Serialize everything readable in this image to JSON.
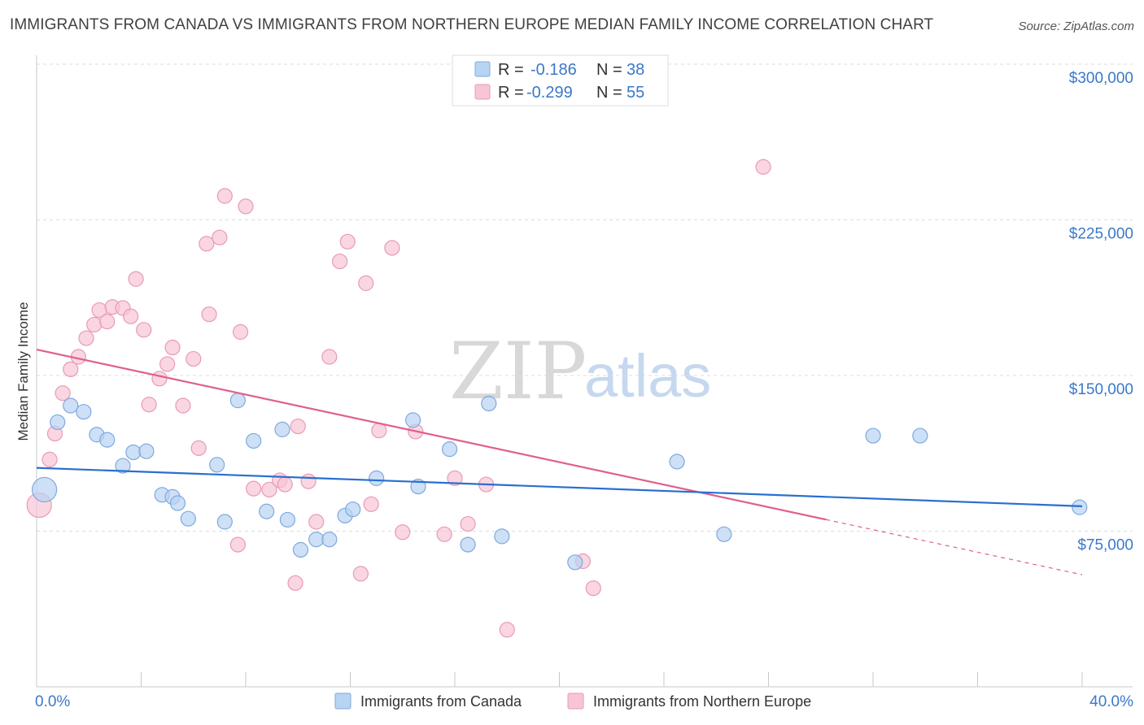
{
  "title": "IMMIGRANTS FROM CANADA VS IMMIGRANTS FROM NORTHERN EUROPE MEDIAN FAMILY INCOME CORRELATION CHART",
  "source": "Source: ZipAtlas.com",
  "watermark": {
    "zip": "ZIP",
    "atlas": "atlas"
  },
  "colors": {
    "blue_fill": "#b9d3f2",
    "blue_stroke": "#7ea9de",
    "blue_line": "#2a6fcf",
    "pink_fill": "#f7c5d5",
    "pink_stroke": "#e99ab5",
    "pink_line": "#e05f8e",
    "grid": "#dddddd",
    "tick_text": "#3b78c9"
  },
  "stats": [
    {
      "swatch": "blue",
      "r_label": "R =",
      "r_value": "-0.186",
      "n_label": "N =",
      "n_value": "38"
    },
    {
      "swatch": "pink",
      "r_label": "R =",
      "r_value": "-0.299",
      "n_label": "N =",
      "n_value": "55"
    }
  ],
  "legend": [
    {
      "swatch": "blue",
      "label": "Immigrants from Canada"
    },
    {
      "swatch": "pink",
      "label": "Immigrants from Northern Europe"
    }
  ],
  "chart_data": {
    "type": "scatter",
    "xlabel": "",
    "ylabel": "Median Family Income",
    "xlim": [
      0,
      40
    ],
    "ylim": [
      0,
      310000
    ],
    "x_tick_labels": {
      "min": "0.0%",
      "max": "40.0%"
    },
    "y_ticks": [
      {
        "value": 75000,
        "label": "$75,000"
      },
      {
        "value": 150000,
        "label": "$150,000"
      },
      {
        "value": 225000,
        "label": "$225,000"
      },
      {
        "value": 300000,
        "label": "$300,000"
      }
    ],
    "grid": true,
    "legend_position": "bottom-center",
    "series": [
      {
        "name": "Immigrants from Canada",
        "color": "blue",
        "trend": {
          "x0": 0,
          "y0": 105500,
          "x1": 40,
          "y1": 87000,
          "dashed_from": null
        },
        "points": [
          {
            "x": 0.3,
            "y": 95000,
            "big": true
          },
          {
            "x": 0.8,
            "y": 127500
          },
          {
            "x": 1.3,
            "y": 135500
          },
          {
            "x": 1.8,
            "y": 132500
          },
          {
            "x": 2.3,
            "y": 121500
          },
          {
            "x": 2.7,
            "y": 119000
          },
          {
            "x": 3.3,
            "y": 106500
          },
          {
            "x": 3.7,
            "y": 113000
          },
          {
            "x": 4.2,
            "y": 113500
          },
          {
            "x": 4.8,
            "y": 92500
          },
          {
            "x": 5.2,
            "y": 91500
          },
          {
            "x": 5.4,
            "y": 88500
          },
          {
            "x": 5.8,
            "y": 81000
          },
          {
            "x": 6.9,
            "y": 107000
          },
          {
            "x": 7.2,
            "y": 79500
          },
          {
            "x": 7.7,
            "y": 138000
          },
          {
            "x": 8.3,
            "y": 118500
          },
          {
            "x": 8.8,
            "y": 84500
          },
          {
            "x": 9.4,
            "y": 124000
          },
          {
            "x": 9.6,
            "y": 80500
          },
          {
            "x": 10.1,
            "y": 66000
          },
          {
            "x": 10.7,
            "y": 71000
          },
          {
            "x": 11.2,
            "y": 71000
          },
          {
            "x": 11.8,
            "y": 82500
          },
          {
            "x": 12.1,
            "y": 85500
          },
          {
            "x": 13.0,
            "y": 100500
          },
          {
            "x": 14.4,
            "y": 128500
          },
          {
            "x": 14.6,
            "y": 96500
          },
          {
            "x": 15.8,
            "y": 114500
          },
          {
            "x": 16.5,
            "y": 68500
          },
          {
            "x": 17.3,
            "y": 136500
          },
          {
            "x": 17.8,
            "y": 72500
          },
          {
            "x": 20.6,
            "y": 60000
          },
          {
            "x": 24.5,
            "y": 108500
          },
          {
            "x": 26.3,
            "y": 73500
          },
          {
            "x": 32.0,
            "y": 121000
          },
          {
            "x": 33.8,
            "y": 121000
          },
          {
            "x": 39.9,
            "y": 86500
          }
        ]
      },
      {
        "name": "Immigrants from Northern Europe",
        "color": "pink",
        "trend": {
          "x0": 0,
          "y0": 162500,
          "x1": 40,
          "y1": 54000,
          "dashed_from": 30.2
        },
        "points": [
          {
            "x": 0.1,
            "y": 87500,
            "big": true
          },
          {
            "x": 0.5,
            "y": 109500
          },
          {
            "x": 0.7,
            "y": 122000
          },
          {
            "x": 1.0,
            "y": 141500
          },
          {
            "x": 1.3,
            "y": 153000
          },
          {
            "x": 1.6,
            "y": 159000
          },
          {
            "x": 1.9,
            "y": 168000
          },
          {
            "x": 2.2,
            "y": 174500
          },
          {
            "x": 2.4,
            "y": 181500
          },
          {
            "x": 2.7,
            "y": 176000
          },
          {
            "x": 2.9,
            "y": 183000
          },
          {
            "x": 3.3,
            "y": 182500
          },
          {
            "x": 3.6,
            "y": 178500
          },
          {
            "x": 3.8,
            "y": 196500
          },
          {
            "x": 4.1,
            "y": 172000
          },
          {
            "x": 4.3,
            "y": 136000
          },
          {
            "x": 4.7,
            "y": 148500
          },
          {
            "x": 5.0,
            "y": 155500
          },
          {
            "x": 5.2,
            "y": 163500
          },
          {
            "x": 5.6,
            "y": 135500
          },
          {
            "x": 6.0,
            "y": 158000
          },
          {
            "x": 6.2,
            "y": 115000
          },
          {
            "x": 6.5,
            "y": 213500
          },
          {
            "x": 6.6,
            "y": 179500
          },
          {
            "x": 7.0,
            "y": 216500
          },
          {
            "x": 7.2,
            "y": 236500
          },
          {
            "x": 7.7,
            "y": 68500
          },
          {
            "x": 7.8,
            "y": 171000
          },
          {
            "x": 8.0,
            "y": 231500
          },
          {
            "x": 8.3,
            "y": 95500
          },
          {
            "x": 8.9,
            "y": 95000
          },
          {
            "x": 9.3,
            "y": 99500
          },
          {
            "x": 9.5,
            "y": 97500
          },
          {
            "x": 9.9,
            "y": 50000
          },
          {
            "x": 10.0,
            "y": 125500
          },
          {
            "x": 10.4,
            "y": 99000
          },
          {
            "x": 10.7,
            "y": 79500
          },
          {
            "x": 11.2,
            "y": 159000
          },
          {
            "x": 11.6,
            "y": 205000
          },
          {
            "x": 11.9,
            "y": 214500
          },
          {
            "x": 12.4,
            "y": 54500
          },
          {
            "x": 12.6,
            "y": 194500
          },
          {
            "x": 12.8,
            "y": 88000
          },
          {
            "x": 13.1,
            "y": 123500
          },
          {
            "x": 13.6,
            "y": 211500
          },
          {
            "x": 14.0,
            "y": 74500
          },
          {
            "x": 14.5,
            "y": 123000
          },
          {
            "x": 15.6,
            "y": 73500
          },
          {
            "x": 16.0,
            "y": 100500
          },
          {
            "x": 16.5,
            "y": 78500
          },
          {
            "x": 17.2,
            "y": 97500
          },
          {
            "x": 18.0,
            "y": 27500
          },
          {
            "x": 20.9,
            "y": 60500
          },
          {
            "x": 21.3,
            "y": 47500
          },
          {
            "x": 27.8,
            "y": 250500
          }
        ]
      }
    ]
  }
}
